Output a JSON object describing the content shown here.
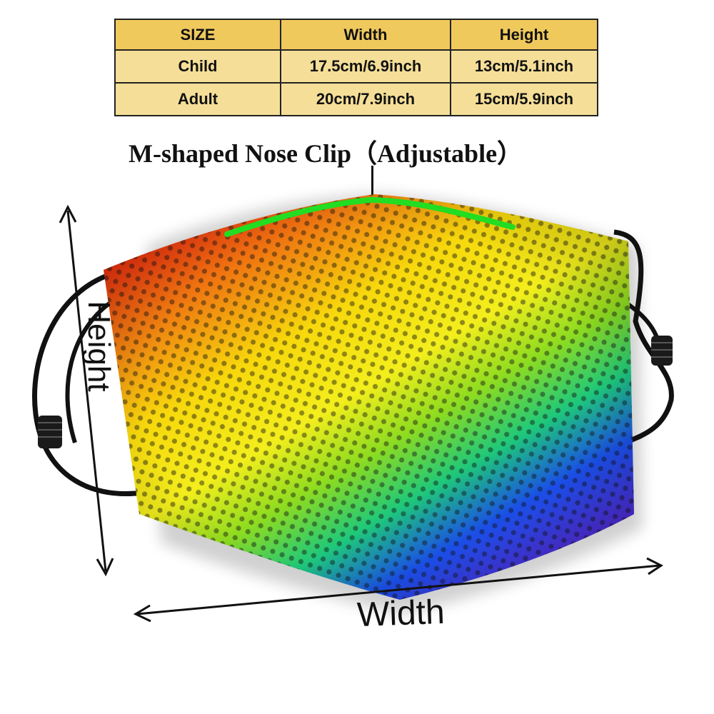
{
  "size_table": {
    "headers": [
      "SIZE",
      "Width",
      "Height"
    ],
    "rows": [
      [
        "Child",
        "17.5cm/6.9inch",
        "13cm/5.1inch"
      ],
      [
        "Adult",
        "20cm/7.9inch",
        "15cm/5.9inch"
      ]
    ]
  },
  "nose_clip_label": "M-shaped Nose Clip（Adjustable）",
  "dimension_labels": {
    "height": "Height",
    "width": "Width"
  },
  "colors": {
    "table_bg": "#f5de97",
    "table_header_bg": "#f0c95c",
    "nose_clip": "#22dd22",
    "rainbow": [
      "#ee2a10",
      "#f7c80c",
      "#f3ee1c",
      "#38d22a",
      "#1a4ee6",
      "#5a22cc"
    ]
  },
  "icons": [
    "height-arrow-icon",
    "width-arrow-icon",
    "ear-loop-icon",
    "strap-adjuster-icon"
  ]
}
